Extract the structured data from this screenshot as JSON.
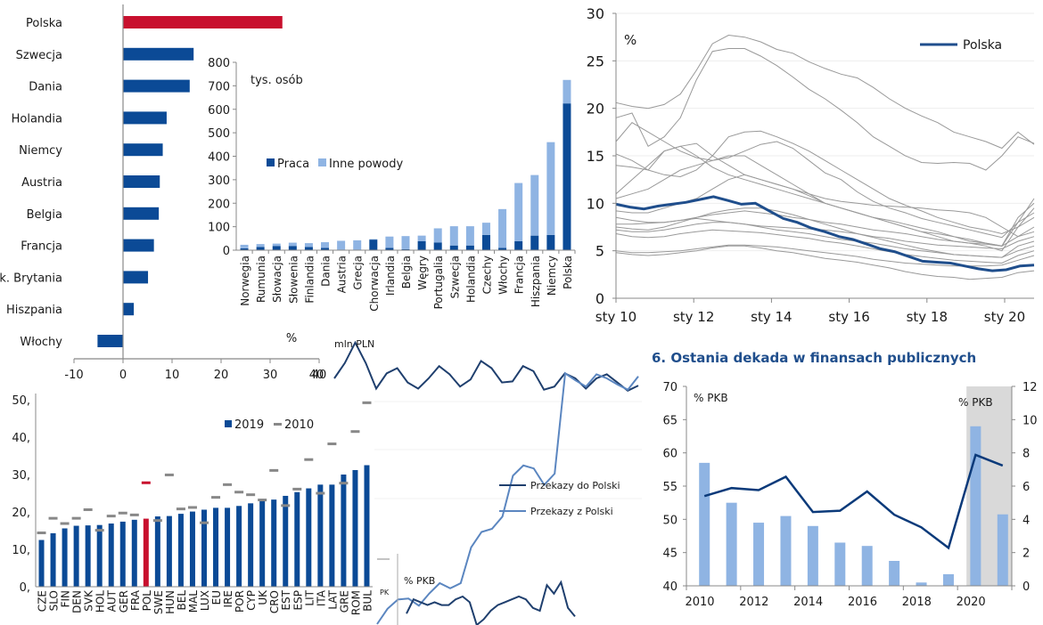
{
  "colors": {
    "dark_blue": "#0b4a96",
    "light_blue": "#8fb4e3",
    "red": "#c8102e",
    "grey_line": "#999999",
    "polska_line": "#1f4e8c",
    "axis": "#888888",
    "shade": "#d9d9d9"
  },
  "chart_data": [
    {
      "id": "hbar-countries",
      "type": "bar",
      "orientation": "horizontal",
      "xlabel": "%",
      "categories": [
        "Polska",
        "Szwecja",
        "Dania",
        "Holandia",
        "Niemcy",
        "Austria",
        "Belgia",
        "Francja",
        "Wlk. Brytania",
        "Hiszpania",
        "Włochy"
      ],
      "values": [
        32.5,
        14.4,
        13.6,
        8.9,
        8.1,
        7.5,
        7.3,
        6.3,
        5.1,
        2.2,
        -5.2
      ],
      "highlight": "Polska",
      "xlim": [
        -10,
        40
      ],
      "xticks": [
        "-10",
        "0",
        "10",
        "20",
        "30",
        "40"
      ]
    },
    {
      "id": "stacked-migrants",
      "type": "bar",
      "stacked": true,
      "unit_label": "tys. osób",
      "categories": [
        "Norwegia",
        "Rumunia",
        "Słowacja",
        "Słowenia",
        "Finlandia",
        "Dania",
        "Austria",
        "Grecja",
        "Chorwacja",
        "Irlandia",
        "Belgia",
        "Węgry",
        "Portugalia",
        "Szwecja",
        "Holandia",
        "Czechy",
        "Włochy",
        "Francja",
        "Hiszpania",
        "Niemcy",
        "Polska"
      ],
      "series": [
        {
          "name": "Praca",
          "values": [
            8,
            14,
            18,
            18,
            14,
            10,
            2,
            2,
            45,
            10,
            4,
            38,
            33,
            20,
            20,
            65,
            10,
            38,
            62,
            65,
            625
          ]
        },
        {
          "name": "Inne powody",
          "values": [
            15,
            12,
            10,
            14,
            16,
            24,
            38,
            40,
            2,
            48,
            56,
            24,
            60,
            82,
            82,
            52,
            165,
            248,
            258,
            395,
            100
          ]
        }
      ],
      "ylim": [
        0,
        800
      ],
      "yticks": [
        "0",
        "100",
        "200",
        "300",
        "400",
        "500",
        "600",
        "700",
        "800"
      ],
      "legend": "center-left"
    },
    {
      "id": "unemployment-lines",
      "type": "line",
      "ylabel": "%",
      "ylim": [
        0,
        30
      ],
      "yticks": [
        "0",
        "5",
        "10",
        "15",
        "20",
        "25",
        "30"
      ],
      "xticks": [
        "sty 10",
        "sty 12",
        "sty 14",
        "sty 16",
        "sty 18",
        "sty 20"
      ],
      "legend_label": "Polska",
      "legend": "top-right",
      "polska": [
        9.9,
        9.6,
        9.4,
        9.7,
        9.9,
        10.1,
        10.4,
        10.7,
        10.3,
        9.9,
        10.0,
        9.2,
        8.4,
        8.0,
        7.4,
        7.0,
        6.5,
        6.2,
        5.7,
        5.2,
        4.9,
        4.4,
        3.9,
        3.8,
        3.7,
        3.4,
        3.1,
        2.9,
        3.0,
        3.4,
        3.5
      ],
      "others": [
        [
          20.6,
          20.2,
          20.0,
          20.4,
          21.5,
          24.0,
          26.8,
          27.7,
          27.5,
          27.0,
          26.2,
          25.8,
          24.9,
          24.2,
          23.6,
          23.2,
          22.2,
          21.0,
          20.0,
          19.2,
          18.5,
          17.5,
          17.0,
          16.5,
          15.8,
          17.5,
          16.2
        ],
        [
          19.0,
          19.5,
          16.0,
          17.0,
          19.0,
          23.0,
          26.0,
          26.3,
          26.3,
          25.5,
          24.5,
          23.3,
          22.0,
          21.0,
          19.8,
          18.5,
          17.0,
          16.0,
          15.0,
          14.3,
          14.2,
          14.3,
          14.2,
          13.5,
          15.0,
          17.0,
          16.3
        ],
        [
          16.5,
          18.5,
          17.5,
          16.5,
          15.5,
          14.8,
          14.5,
          14.8,
          15.5,
          16.2,
          16.5,
          15.8,
          14.5,
          13.2,
          12.5,
          11.2,
          10.2,
          9.5,
          9.0,
          8.4,
          8.0,
          7.6,
          7.2,
          6.8,
          6.4,
          8.0,
          10.5
        ],
        [
          14.0,
          13.8,
          13.5,
          15.5,
          16.0,
          16.3,
          15.0,
          14.0,
          13.0,
          12.5,
          12.0,
          11.5,
          10.8,
          10.0,
          9.5,
          9.0,
          8.5,
          8.0,
          7.5,
          7.0,
          6.5,
          6.0,
          5.8,
          5.5,
          5.0,
          7.5,
          9.5
        ],
        [
          15.2,
          14.5,
          13.5,
          13.0,
          12.8,
          13.5,
          15.0,
          17.0,
          17.5,
          17.6,
          17.0,
          16.3,
          15.5,
          14.5,
          13.5,
          12.5,
          11.5,
          10.5,
          9.8,
          9.2,
          8.5,
          8.0,
          7.5,
          7.2,
          6.8,
          7.5,
          8.5
        ],
        [
          11.0,
          12.5,
          14.0,
          15.5,
          16.0,
          15.0,
          13.8,
          13.0,
          12.5,
          12.0,
          11.5,
          11.0,
          10.5,
          10.0,
          9.5,
          9.0,
          8.5,
          8.2,
          7.8,
          7.4,
          7.0,
          6.5,
          6.2,
          5.8,
          5.5,
          8.5,
          10.0
        ],
        [
          10.5,
          11.0,
          11.5,
          12.5,
          13.5,
          14.0,
          14.5,
          15.0,
          15.0,
          14.0,
          13.0,
          12.0,
          11.0,
          10.0,
          9.5,
          9.0,
          8.5,
          8.0,
          7.5,
          7.0,
          6.8,
          6.5,
          6.0,
          5.8,
          5.5,
          8.0,
          9.0
        ],
        [
          9.2,
          9.0,
          9.0,
          9.5,
          10.0,
          10.5,
          11.5,
          12.5,
          13.0,
          12.5,
          12.0,
          11.5,
          11.0,
          10.5,
          10.2,
          10.0,
          9.8,
          9.7,
          9.6,
          9.5,
          9.3,
          9.2,
          9.0,
          8.5,
          7.5,
          6.5,
          7.0
        ],
        [
          8.5,
          8.2,
          8.0,
          8.0,
          8.2,
          8.5,
          8.8,
          9.0,
          9.2,
          9.0,
          8.8,
          8.5,
          8.3,
          8.0,
          7.8,
          7.5,
          7.2,
          7.0,
          6.8,
          6.5,
          6.2,
          6.0,
          5.8,
          5.7,
          5.5,
          6.5,
          7.5
        ],
        [
          7.8,
          7.8,
          7.9,
          8.0,
          8.2,
          8.4,
          8.2,
          8.0,
          7.8,
          7.6,
          7.5,
          7.4,
          7.3,
          7.2,
          7.0,
          6.8,
          6.5,
          6.3,
          6.0,
          5.8,
          5.6,
          5.5,
          5.4,
          5.3,
          5.2,
          6.0,
          6.5
        ],
        [
          7.2,
          7.0,
          7.0,
          7.2,
          7.5,
          7.8,
          8.0,
          8.0,
          7.8,
          7.5,
          7.2,
          7.0,
          6.8,
          6.5,
          6.2,
          6.0,
          5.8,
          5.5,
          5.2,
          5.0,
          4.8,
          4.6,
          4.5,
          4.4,
          4.3,
          5.0,
          5.5
        ],
        [
          6.8,
          6.5,
          6.4,
          6.5,
          6.8,
          7.0,
          7.2,
          7.1,
          7.0,
          6.9,
          6.7,
          6.5,
          6.3,
          6.0,
          5.8,
          5.5,
          5.2,
          4.9,
          4.6,
          4.4,
          4.2,
          4.0,
          3.9,
          3.8,
          3.7,
          4.5,
          5.0
        ],
        [
          5.0,
          4.8,
          4.8,
          4.9,
          5.0,
          5.2,
          5.4,
          5.6,
          5.6,
          5.5,
          5.4,
          5.2,
          5.0,
          4.8,
          4.6,
          4.4,
          4.1,
          3.9,
          3.7,
          3.6,
          3.5,
          3.4,
          3.4,
          3.4,
          3.5,
          4.0,
          4.5
        ],
        [
          4.8,
          4.6,
          4.5,
          4.6,
          4.8,
          5.0,
          5.3,
          5.5,
          5.5,
          5.3,
          5.0,
          4.8,
          4.5,
          4.2,
          4.0,
          3.8,
          3.5,
          3.2,
          2.8,
          2.5,
          2.3,
          2.2,
          2.0,
          2.1,
          2.2,
          2.7,
          2.9
        ],
        [
          7.5,
          7.3,
          7.2,
          7.5,
          8.0,
          8.5,
          9.0,
          9.3,
          9.5,
          9.5,
          9.2,
          8.8,
          8.3,
          7.8,
          7.3,
          6.8,
          6.4,
          6.0,
          5.6,
          5.2,
          4.9,
          4.6,
          4.5,
          4.4,
          4.3,
          5.5,
          6.0
        ]
      ]
    },
    {
      "id": "poverty-eu",
      "type": "bar",
      "ylim": [
        0,
        50
      ],
      "yticks": [
        "0,",
        "10,",
        "20,",
        "30,",
        "40,",
        "50,"
      ],
      "categories": [
        "CZE",
        "SLO",
        "FIN",
        "DEN",
        "SVK",
        "HOL",
        "AUT",
        "GER",
        "FRA",
        "POL",
        "SWE",
        "HUN",
        "BEL",
        "MAL",
        "LUX",
        "EU",
        "IRE",
        "POR",
        "CYP",
        "UK",
        "CRO",
        "EST",
        "ESP",
        "LIT",
        "ITA",
        "LAT",
        "GRE",
        "ROM",
        "BUL"
      ],
      "series": [
        {
          "name": "2019",
          "values": [
            12.5,
            14.3,
            15.6,
            16.3,
            16.4,
            16.5,
            16.9,
            17.4,
            17.9,
            18.2,
            18.8,
            18.9,
            19.5,
            20.1,
            20.6,
            21.1,
            21.1,
            21.6,
            22.3,
            23.1,
            23.3,
            24.3,
            25.3,
            26.3,
            27.3,
            27.3,
            30.0,
            31.2,
            32.5
          ]
        },
        {
          "name": "2010",
          "values": [
            14.4,
            18.3,
            16.9,
            18.3,
            20.6,
            15.1,
            18.9,
            19.7,
            19.2,
            27.8,
            17.7,
            29.9,
            20.8,
            21.2,
            17.1,
            23.9,
            27.3,
            25.3,
            24.6,
            23.2,
            31.1,
            21.7,
            26.1,
            34.0,
            25.0,
            38.2,
            27.7,
            41.5,
            49.2
          ]
        }
      ],
      "highlight": "POL",
      "legend": "top-center"
    },
    {
      "id": "remittances",
      "type": "line",
      "unit_label": "mln PLN",
      "ytick_visible": "40",
      "series": [
        {
          "name": "Przekazy do Polski",
          "values": [
            40,
            41.5,
            43.5,
            41.5,
            39,
            40.5,
            41,
            39.6,
            39,
            40,
            41.2,
            40.4,
            39.2,
            39.9,
            41.7,
            41,
            39.6,
            39.7,
            41.2,
            40.7,
            38.9,
            39.2,
            40.5,
            40,
            39,
            40,
            40.4,
            39.6,
            38.8,
            39.3
          ]
        },
        {
          "name": "Przekazy z Polski",
          "values": [
            16,
            17.5,
            18.4,
            18.5,
            17.8,
            19,
            20,
            19.5,
            20,
            23.5,
            25,
            25.3,
            26.5,
            30.5,
            31.5,
            31.2,
            29.6,
            30.7,
            40.5,
            39.8,
            39.2,
            40.4,
            40,
            39.4,
            38.9,
            40.2
          ]
        }
      ],
      "legend": "center-right"
    },
    {
      "id": "remittances-gdp",
      "type": "line",
      "unit_label": "% PKB",
      "axis_stub_label": "PK",
      "series": [
        {
          "name": "% PKB",
          "values": [
            2.2,
            2.7,
            2.6,
            2.5,
            2.6,
            2.5,
            2.5,
            2.7,
            2.8,
            2.6,
            1.8,
            2.0,
            2.3,
            2.5,
            2.6,
            2.7,
            2.8,
            2.7,
            2.4,
            2.3,
            3.2,
            2.9,
            3.3,
            2.4,
            2.1
          ]
        }
      ]
    },
    {
      "id": "public-finance",
      "type": "bar",
      "title": "6. Ostania dekada w finansach publicznych",
      "left_unit": "% PKB",
      "right_unit": "% PKB",
      "ylim_left": [
        40,
        70
      ],
      "ylim_right": [
        0,
        12
      ],
      "yticks_left": [
        "40",
        "45",
        "50",
        "55",
        "60",
        "65",
        "70"
      ],
      "yticks_right": [
        "0",
        "2",
        "4",
        "6",
        "8",
        "10",
        "12"
      ],
      "xticks": [
        "2010",
        "2012",
        "2014",
        "2016",
        "2018",
        "2020"
      ],
      "categories": [
        "2010",
        "2011",
        "2012",
        "2013",
        "2014",
        "2015",
        "2016",
        "2017",
        "2018",
        "2019",
        "2020",
        "2021"
      ],
      "bars_right_axis": [
        7.4,
        5.0,
        3.8,
        4.2,
        3.6,
        2.6,
        2.4,
        1.5,
        0.2,
        0.7,
        9.6,
        4.3
      ],
      "line_left_axis": [
        53.5,
        54.7,
        54.4,
        56.4,
        51.1,
        51.3,
        54.2,
        50.7,
        48.8,
        45.7,
        59.7,
        58.1
      ],
      "shaded_from": "2020"
    }
  ]
}
